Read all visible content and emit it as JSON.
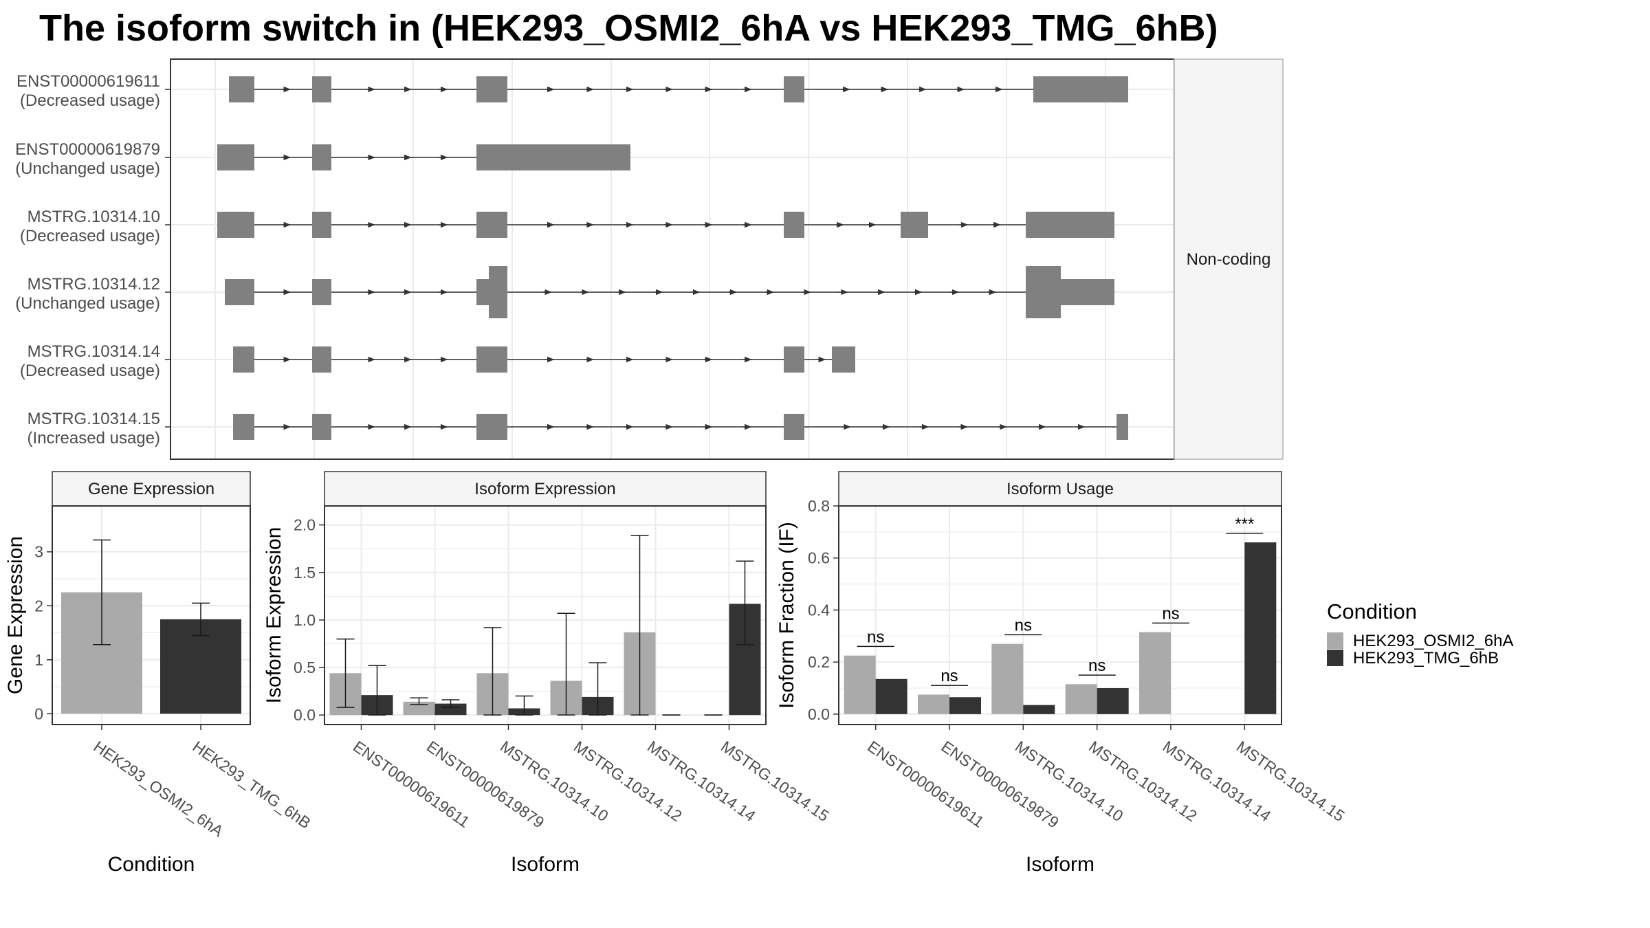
{
  "title": "The isoform switch in  (HEK293_OSMI2_6hA vs HEK293_TMG_6hB)",
  "colors": {
    "cond1": "#aaaaaa",
    "cond2": "#333333",
    "exon": "#808080",
    "grid": "#ebebeb",
    "strip_fill": "#f5f5f5",
    "panel_border": "#333333",
    "strip_border": "#b3b3b3"
  },
  "legend": {
    "title": "Condition",
    "items": [
      "HEK293_OSMI2_6hA",
      "HEK293_TMG_6hB"
    ]
  },
  "structure": {
    "strip_label": "Non-coding",
    "rows": [
      {
        "id": "ENST00000619611",
        "usage": "(Decreased usage)"
      },
      {
        "id": "ENST00000619879",
        "usage": "(Unchanged usage)"
      },
      {
        "id": "MSTRG.10314.10",
        "usage": "(Decreased usage)"
      },
      {
        "id": "MSTRG.10314.12",
        "usage": "(Unchanged usage)"
      },
      {
        "id": "MSTRG.10314.14",
        "usage": "(Decreased usage)"
      },
      {
        "id": "MSTRG.10314.15",
        "usage": "(Increased usage)"
      }
    ]
  },
  "chart_data": [
    {
      "type": "bar",
      "title": "Gene Expression",
      "xlabel": "Condition",
      "ylabel": "Gene Expression",
      "ylim": [
        -0.2,
        3.85
      ],
      "yticks": [
        0,
        1,
        2,
        3
      ],
      "categories": [
        "HEK293_OSMI2_6hA",
        "HEK293_TMG_6hB"
      ],
      "values": [
        2.25,
        1.75
      ],
      "errors": [
        [
          1.28,
          3.22
        ],
        [
          1.45,
          2.05
        ]
      ]
    },
    {
      "type": "bar",
      "title": "Isoform Expression",
      "xlabel": "Isoform",
      "ylabel": "Isoform Expression",
      "ylim": [
        -0.1,
        2.2
      ],
      "yticks": [
        "0.0",
        "0.5",
        "1.0",
        "1.5",
        "2.0"
      ],
      "categories": [
        "ENST00000619611",
        "ENST00000619879",
        "MSTRG.10314.10",
        "MSTRG.10314.12",
        "MSTRG.10314.14",
        "MSTRG.10314.15"
      ],
      "series": [
        {
          "name": "HEK293_OSMI2_6hA",
          "values": [
            0.44,
            0.14,
            0.44,
            0.36,
            0.87,
            0.0
          ],
          "errors": [
            [
              0.08,
              0.8
            ],
            [
              0.11,
              0.18
            ],
            [
              0.0,
              0.92
            ],
            [
              0.0,
              1.07
            ],
            [
              0.0,
              1.89
            ],
            [
              0.0,
              0.0
            ]
          ]
        },
        {
          "name": "HEK293_TMG_6hB",
          "values": [
            0.21,
            0.12,
            0.07,
            0.19,
            0.0,
            1.17
          ],
          "errors": [
            [
              0.0,
              0.52
            ],
            [
              0.08,
              0.16
            ],
            [
              0.0,
              0.2
            ],
            [
              0.0,
              0.55
            ],
            [
              0.0,
              0.0
            ],
            [
              0.74,
              1.62
            ]
          ]
        }
      ]
    },
    {
      "type": "bar",
      "title": "Isoform Usage",
      "xlabel": "Isoform",
      "ylabel": "Isoform Fraction (IF)",
      "ylim": [
        -0.04,
        0.8
      ],
      "yticks": [
        "0.0",
        "0.2",
        "0.4",
        "0.6",
        "0.8"
      ],
      "categories": [
        "ENST00000619611",
        "ENST00000619879",
        "MSTRG.10314.10",
        "MSTRG.10314.12",
        "MSTRG.10314.14",
        "MSTRG.10314.15"
      ],
      "series": [
        {
          "name": "HEK293_OSMI2_6hA",
          "values": [
            0.225,
            0.075,
            0.27,
            0.115,
            0.315,
            0.0
          ]
        },
        {
          "name": "HEK293_TMG_6hB",
          "values": [
            0.135,
            0.065,
            0.035,
            0.1,
            0.0,
            0.66
          ]
        }
      ],
      "significance": [
        "ns",
        "ns",
        "ns",
        "ns",
        "ns",
        "***"
      ]
    }
  ]
}
